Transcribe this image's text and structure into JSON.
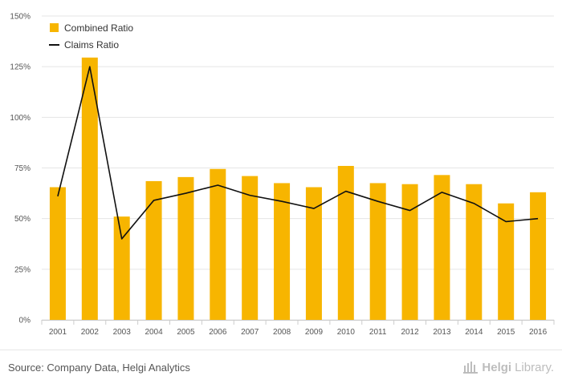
{
  "chart_data": {
    "type": "bar",
    "categories": [
      "2001",
      "2002",
      "2003",
      "2004",
      "2005",
      "2006",
      "2007",
      "2008",
      "2009",
      "2010",
      "2011",
      "2012",
      "2013",
      "2014",
      "2015",
      "2016"
    ],
    "series": [
      {
        "name": "Combined Ratio",
        "type": "bar",
        "color": "#f7b500",
        "values": [
          65.5,
          129.5,
          51,
          68.5,
          70.5,
          74.5,
          71,
          67.5,
          65.5,
          76,
          67.5,
          67,
          71.5,
          67,
          57.5,
          63
        ]
      },
      {
        "name": "Claims Ratio",
        "type": "line",
        "color": "#111111",
        "values": [
          61,
          125,
          40,
          59,
          62.5,
          66.5,
          61.5,
          58.5,
          55,
          63.5,
          58.5,
          54,
          63,
          57.5,
          48.5,
          50
        ]
      }
    ],
    "yticks": [
      "0%",
      "25%",
      "50%",
      "75%",
      "100%",
      "125%",
      "150%"
    ],
    "ylim": [
      0,
      150
    ],
    "ystep": 25,
    "grid": true,
    "legend_position": "top-left"
  },
  "footer": {
    "source": "Source: Company Data, Helgi Analytics",
    "brand_bold": "Helgi",
    "brand_light": "Library."
  },
  "icons": {
    "brand": "library-building-icon"
  }
}
